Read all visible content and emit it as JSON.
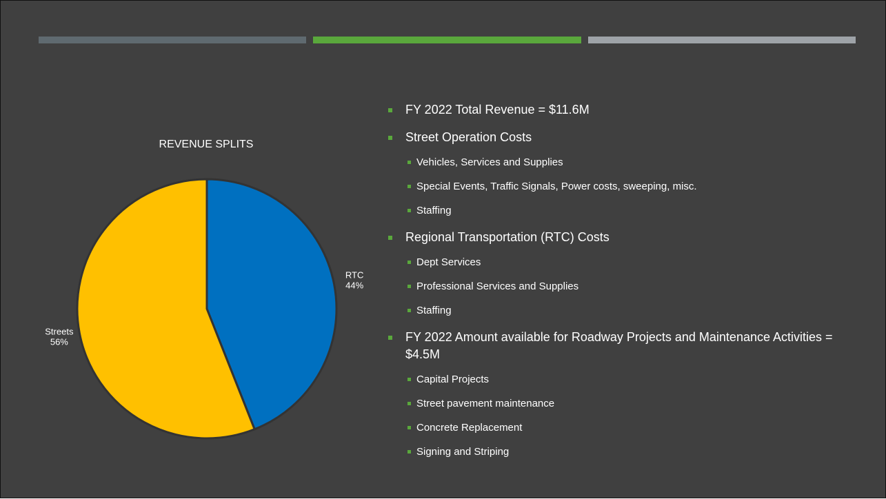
{
  "chart_data": {
    "type": "pie",
    "title": "REVENUE SPLITS",
    "categories": [
      "RTC",
      "Streets"
    ],
    "values": [
      44,
      56
    ],
    "value_labels": [
      "44%",
      "56%"
    ],
    "colors": [
      "#0070c0",
      "#ffc000"
    ]
  },
  "bullets": [
    {
      "text": "FY 2022 Total Revenue = $11.6M",
      "sub": []
    },
    {
      "text": "Street Operation Costs",
      "sub": [
        "Vehicles, Services and Supplies",
        "Special Events, Traffic Signals, Power costs, sweeping, misc.",
        "Staffing"
      ]
    },
    {
      "text": "Regional Transportation (RTC) Costs",
      "sub": [
        "Dept Services",
        "Professional Services and Supplies",
        "Staffing"
      ]
    },
    {
      "text": "FY 2022 Amount available for Roadway Projects and Maintenance Activities = $4.5M",
      "sub": [
        "Capital Projects",
        "Street pavement maintenance",
        "Concrete Replacement",
        "Signing and Striping"
      ]
    }
  ]
}
